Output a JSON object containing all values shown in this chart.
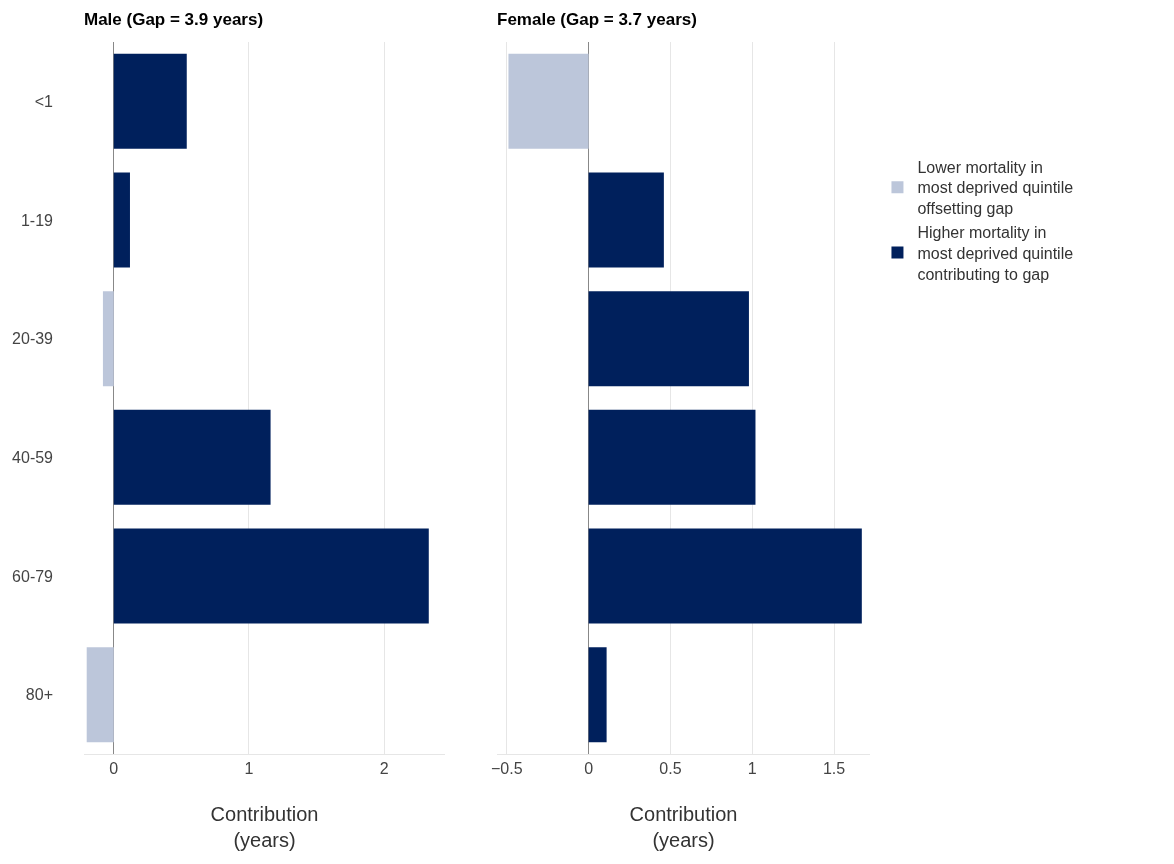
{
  "chart_data": [
    {
      "type": "bar",
      "title": "Male (Gap = 3.9 years)",
      "xlabel": "Contribution\n(years)",
      "orientation": "horizontal",
      "stacked": true,
      "categories": [
        "<1",
        "1-19",
        "20-39",
        "40-59",
        "60-79",
        "80+"
      ],
      "series": [
        {
          "color": "#bcc6da",
          "values": [
            null,
            null,
            -0.08,
            null,
            null,
            -0.2
          ]
        },
        {
          "color": "#00205c",
          "values": [
            0.54,
            0.12,
            null,
            1.16,
            2.33,
            null
          ]
        }
      ],
      "xlim": [
        -0.22,
        2.45
      ],
      "xticks": [
        0,
        1,
        2
      ],
      "grid": "x",
      "legend": false
    },
    {
      "type": "bar",
      "title": "Female (Gap = 3.7 years)",
      "xlabel": "Contribution\n(years)",
      "orientation": "horizontal",
      "stacked": true,
      "categories": [
        null,
        null,
        null,
        null,
        null,
        null
      ],
      "series": [
        {
          "name": "Lower mortality in\nmost deprived quintile\noffsetting gap",
          "color": "#bcc6da",
          "values": [
            -0.49,
            null,
            null,
            null,
            null,
            null
          ]
        },
        {
          "name": "Higher mortality in\nmost deprived quintile\ncontributing to gap",
          "color": "#00205c",
          "values": [
            null,
            0.46,
            0.98,
            1.02,
            1.67,
            0.11
          ]
        }
      ],
      "xlim": [
        -0.56,
        1.72
      ],
      "xticks": [
        {
          "value": -0.5,
          "label": "−0.5"
        },
        0,
        0.5,
        1,
        1.5
      ],
      "grid": "x",
      "legend": "right",
      "tick_labels": "x"
    }
  ]
}
